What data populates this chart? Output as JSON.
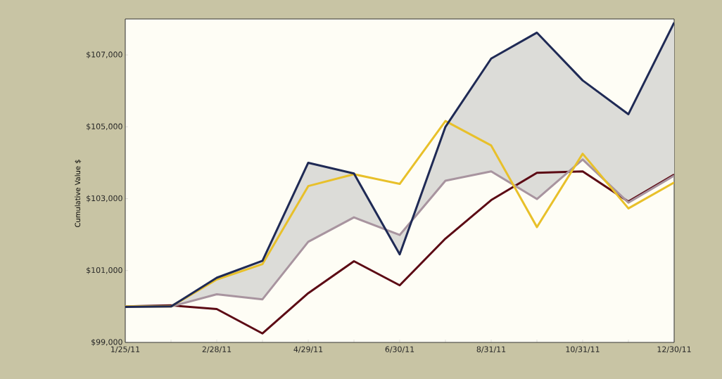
{
  "chart_data": {
    "type": "line",
    "ylabel": "Cumulative Value $",
    "categories": [
      "1/25/11",
      null,
      "2/28/11",
      null,
      "4/29/11",
      null,
      "6/30/11",
      null,
      "8/31/11",
      null,
      "10/31/11",
      null,
      "12/30/11"
    ],
    "ylim": [
      99000,
      108000
    ],
    "yticks": [
      {
        "value": 99000,
        "label": "$99,000"
      },
      {
        "value": 101000,
        "label": "$101,000"
      },
      {
        "value": 103000,
        "label": "$103,000"
      },
      {
        "value": 105000,
        "label": "$105,000"
      },
      {
        "value": 107000,
        "label": "$107,000"
      }
    ],
    "marker": "none",
    "line_style": "solid",
    "series": [
      {
        "color": "#5c0a14",
        "values": [
          100000,
          100030,
          99930,
          99250,
          100370,
          101260,
          100590,
          101890,
          102960,
          103720,
          103760,
          102920,
          103670
        ]
      },
      {
        "color": "#a8949f",
        "values": [
          100000,
          100000,
          100340,
          100200,
          101800,
          102480,
          101990,
          103500,
          103760,
          102990,
          104090,
          102890,
          103640
        ]
      },
      {
        "color": "#e8c02a",
        "values": [
          100000,
          100000,
          100750,
          101180,
          103350,
          103680,
          103410,
          105160,
          104480,
          102210,
          104250,
          102730,
          103450
        ]
      },
      {
        "color": "#1f2a55",
        "values": [
          99990,
          100000,
          100800,
          101270,
          104000,
          103700,
          101450,
          105000,
          106900,
          107620,
          106290,
          105350,
          107900
        ],
        "lower": [
          100000,
          100000,
          100340,
          100200,
          101800,
          102480,
          101990,
          103500,
          103760,
          102990,
          104090,
          102890,
          103640
        ],
        "upper": [
          99990,
          100000,
          100800,
          101270,
          104000,
          103700,
          101450,
          105000,
          106900,
          107620,
          106290,
          105350,
          107900
        ]
      }
    ]
  }
}
